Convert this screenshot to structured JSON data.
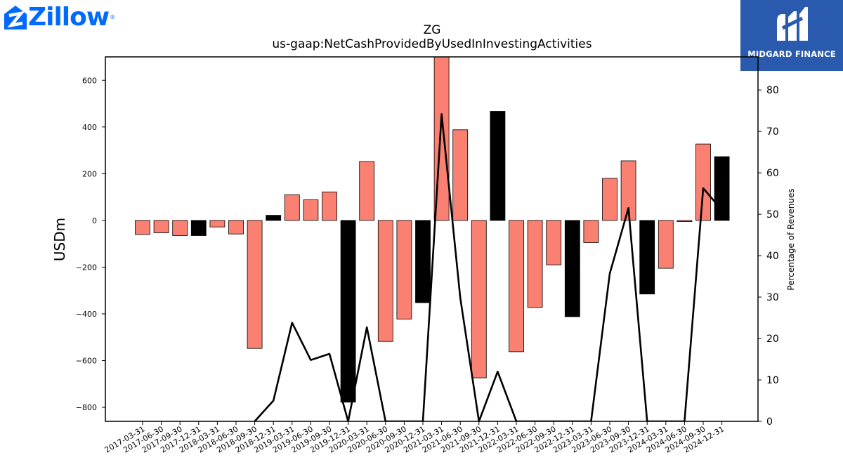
{
  "logos": {
    "left_text": "Zillow",
    "left_mark": "®",
    "right_text": "MIDGARD FINANCE"
  },
  "colors": {
    "positive_bar": "#fa8072",
    "negative_bar": "#000000",
    "line": "#000000",
    "zillow_blue": "#006aff",
    "midgard_blue": "#2a5aad"
  },
  "chart_data": {
    "type": "bar",
    "title": "ZG",
    "subtitle": "us-gaap:NetCashProvidedByUsedInInvestingActivities",
    "ylabel": "USDm",
    "y2label": "Percentage of Revenues",
    "ylim": [
      -860,
      700
    ],
    "y2lim": [
      0,
      88
    ],
    "yticks": [
      -800,
      -600,
      -400,
      -200,
      0,
      200,
      400,
      600
    ],
    "y2ticks": [
      0,
      10,
      20,
      30,
      40,
      50,
      60,
      70,
      80
    ],
    "categories": [
      "2017-03-31",
      "2017-06-30",
      "2017-09-30",
      "2017-12-31",
      "2018-03-31",
      "2018-06-30",
      "2018-09-30",
      "2018-12-31",
      "2019-03-31",
      "2019-06-30",
      "2019-09-30",
      "2019-12-31",
      "2020-03-31",
      "2020-06-30",
      "2020-09-30",
      "2020-12-31",
      "2021-03-31",
      "2021-06-30",
      "2021-09-30",
      "2021-12-31",
      "2022-03-31",
      "2022-06-30",
      "2022-09-30",
      "2022-12-31",
      "2023-03-31",
      "2023-06-30",
      "2023-09-30",
      "2023-12-31",
      "2024-03-31",
      "2024-06-30",
      "2024-09-30",
      "2024-12-31"
    ],
    "series": [
      {
        "values": [
          -60,
          -53,
          -65,
          -65,
          -28,
          -58,
          -548,
          22,
          110,
          88,
          122,
          -778,
          252,
          -518,
          -422,
          -352,
          718,
          388,
          -674,
          467,
          -562,
          -372,
          -190,
          -412,
          -95,
          180,
          255,
          -315,
          -205,
          -5,
          327,
          273
        ],
        "colors": [
          "pos",
          "pos",
          "pos",
          "neg",
          "pos",
          "pos",
          "pos",
          "neg",
          "pos",
          "pos",
          "pos",
          "neg",
          "pos",
          "pos",
          "pos",
          "neg",
          "pos",
          "pos",
          "pos",
          "neg",
          "pos",
          "pos",
          "pos",
          "neg",
          "pos",
          "pos",
          "pos",
          "neg",
          "pos",
          "pos",
          "pos",
          "neg"
        ]
      },
      {
        "axis": "right",
        "values": [
          null,
          null,
          null,
          null,
          null,
          null,
          0,
          5,
          23.8,
          14.8,
          16.3,
          0,
          22.7,
          0,
          0,
          0,
          74.2,
          29.8,
          0,
          12,
          0,
          0,
          0,
          0,
          0,
          35.7,
          51.5,
          0,
          0,
          0,
          56.3,
          51
        ]
      }
    ]
  }
}
